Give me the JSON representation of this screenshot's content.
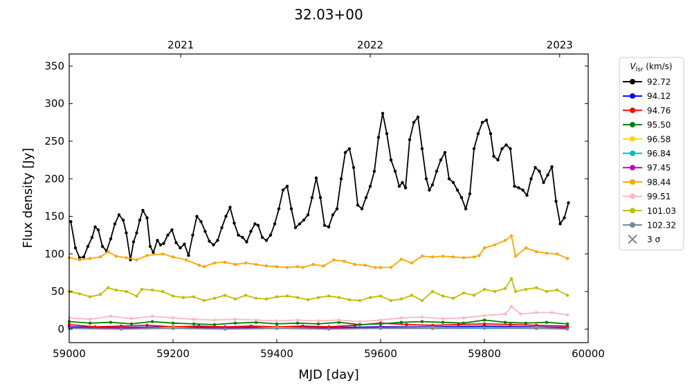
{
  "chart_data": {
    "type": "line",
    "title": "32.03+00",
    "xlabel": "MJD [day]",
    "ylabel": "Flux density [Jy]",
    "xlim": [
      59000,
      60000
    ],
    "ylim": [
      -18,
      366
    ],
    "xticks": [
      "59000",
      "59200",
      "59400",
      "59600",
      "59800",
      "60000"
    ],
    "xtick_values": [
      59000,
      59200,
      59400,
      59600,
      59800,
      60000
    ],
    "yticks": [
      "0",
      "50",
      "100",
      "150",
      "200",
      "250",
      "300",
      "350"
    ],
    "ytick_values": [
      0,
      50,
      100,
      150,
      200,
      250,
      300,
      350
    ],
    "top_axis_ticks": [
      "2021",
      "2022",
      "2023"
    ],
    "top_axis_values": [
      59215,
      59580,
      59945
    ],
    "grid": false,
    "legend_title": "V_lsr (km/s)",
    "legend_placement": "outside-right",
    "sigma_label": "3 σ",
    "sigma_color": "#808080",
    "series": [
      {
        "name": "92.72",
        "color": "#000000",
        "x": [
          59003,
          59012,
          59020,
          59028,
          59036,
          59044,
          59050,
          59056,
          59064,
          59072,
          59080,
          59088,
          59096,
          59104,
          59110,
          59118,
          59124,
          59130,
          59136,
          59142,
          59150,
          59156,
          59162,
          59170,
          59176,
          59182,
          59190,
          59198,
          59206,
          59214,
          59222,
          59230,
          59238,
          59246,
          59254,
          59262,
          59270,
          59278,
          59286,
          59294,
          59302,
          59310,
          59318,
          59326,
          59334,
          59342,
          59350,
          59358,
          59364,
          59372,
          59380,
          59388,
          59396,
          59404,
          59412,
          59420,
          59428,
          59436,
          59444,
          59452,
          59460,
          59468,
          59476,
          59484,
          59492,
          59500,
          59508,
          59516,
          59524,
          59532,
          59540,
          59548,
          59556,
          59564,
          59572,
          59580,
          59588,
          59596,
          59604,
          59612,
          59620,
          59628,
          59636,
          59642,
          59648,
          59656,
          59664,
          59672,
          59680,
          59688,
          59694,
          59700,
          59708,
          59716,
          59724,
          59732,
          59740,
          59748,
          59756,
          59764,
          59772,
          59780,
          59788,
          59796,
          59804,
          59812,
          59818,
          59826,
          59834,
          59842,
          59850,
          59858,
          59866,
          59874,
          59882,
          59890,
          59898,
          59906,
          59914,
          59922,
          59930,
          59938,
          59946,
          59954,
          59962
        ],
        "y": [
          143,
          108,
          95,
          96,
          110,
          122,
          136,
          132,
          110,
          104,
          120,
          140,
          152,
          145,
          128,
          92,
          116,
          128,
          145,
          158,
          148,
          110,
          102,
          118,
          112,
          114,
          125,
          132,
          115,
          108,
          113,
          98,
          125,
          150,
          143,
          130,
          117,
          112,
          118,
          135,
          150,
          162,
          141,
          125,
          122,
          116,
          130,
          140,
          138,
          122,
          118,
          125,
          140,
          160,
          185,
          190,
          160,
          135,
          140,
          145,
          152,
          175,
          201,
          175,
          138,
          136,
          152,
          160,
          200,
          235,
          240,
          215,
          165,
          160,
          175,
          190,
          210,
          255,
          287,
          260,
          225,
          210,
          190,
          195,
          188,
          252,
          275,
          282,
          240,
          200,
          185,
          192,
          210,
          225,
          235,
          200,
          195,
          185,
          175,
          160,
          180,
          240,
          260,
          275,
          278,
          260,
          230,
          225,
          240,
          245,
          240,
          190,
          188,
          185,
          178,
          200,
          215,
          210,
          195,
          205,
          216,
          170,
          140,
          148,
          168
        ]
      },
      {
        "name": "94.12",
        "color": "#0000ff",
        "x": [
          59000,
          59100,
          59200,
          59300,
          59400,
          59500,
          59600,
          59700,
          59800,
          59900,
          59960
        ],
        "y": [
          3,
          2,
          3,
          2,
          3,
          2,
          3,
          3,
          4,
          3,
          2
        ]
      },
      {
        "name": "94.76",
        "color": "#ff0000",
        "x": [
          59000,
          59050,
          59100,
          59150,
          59200,
          59250,
          59300,
          59350,
          59400,
          59450,
          59500,
          59550,
          59600,
          59650,
          59700,
          59750,
          59800,
          59850,
          59900,
          59960
        ],
        "y": [
          6,
          3,
          4,
          5,
          3,
          4,
          3,
          4,
          3,
          4,
          3,
          5,
          8,
          6,
          5,
          6,
          7,
          6,
          5,
          4
        ]
      },
      {
        "name": "95.50",
        "color": "#008000",
        "x": [
          59000,
          59040,
          59080,
          59120,
          59160,
          59200,
          59240,
          59280,
          59320,
          59360,
          59400,
          59440,
          59480,
          59520,
          59560,
          59600,
          59640,
          59680,
          59720,
          59760,
          59800,
          59840,
          59880,
          59920,
          59960
        ],
        "y": [
          10,
          8,
          9,
          7,
          10,
          8,
          7,
          6,
          8,
          9,
          7,
          8,
          7,
          9,
          6,
          7,
          9,
          10,
          9,
          8,
          12,
          9,
          8,
          9,
          7
        ]
      },
      {
        "name": "96.58",
        "color": "#ffd700",
        "x": [
          59000,
          59100,
          59200,
          59300,
          59400,
          59500,
          59600,
          59700,
          59800,
          59900,
          59960
        ],
        "y": [
          2,
          1,
          2,
          1,
          2,
          1,
          2,
          2,
          2,
          2,
          1
        ]
      },
      {
        "name": "96.84",
        "color": "#00bfbf",
        "x": [
          59000,
          59100,
          59200,
          59300,
          59400,
          59500,
          59600,
          59700,
          59800,
          59900,
          59960
        ],
        "y": [
          1,
          1,
          1,
          1,
          1,
          1,
          1,
          1,
          1,
          1,
          1
        ]
      },
      {
        "name": "97.45",
        "color": "#bf00bf",
        "x": [
          59000,
          59100,
          59200,
          59300,
          59400,
          59500,
          59600,
          59700,
          59800,
          59900,
          59960
        ],
        "y": [
          2,
          1,
          1,
          2,
          1,
          1,
          2,
          1,
          2,
          1,
          1
        ]
      },
      {
        "name": "98.44",
        "color": "#ffa500",
        "x": [
          59000,
          59020,
          59040,
          59060,
          59075,
          59090,
          59110,
          59130,
          59150,
          59180,
          59200,
          59225,
          59250,
          59260,
          59280,
          59300,
          59320,
          59340,
          59360,
          59380,
          59400,
          59420,
          59440,
          59450,
          59470,
          59490,
          59510,
          59530,
          59550,
          59570,
          59590,
          59600,
          59620,
          59640,
          59660,
          59680,
          59700,
          59720,
          59740,
          59760,
          59780,
          59790,
          59800,
          59820,
          59840,
          59852,
          59860,
          59880,
          59900,
          59920,
          59940,
          59960
        ],
        "y": [
          95,
          92,
          94,
          96,
          103,
          97,
          95,
          92,
          98,
          100,
          96,
          92,
          85,
          83,
          88,
          89,
          86,
          88,
          86,
          84,
          83,
          82,
          83,
          82,
          86,
          84,
          92,
          90,
          86,
          85,
          82,
          82,
          82,
          93,
          88,
          97,
          96,
          97,
          96,
          95,
          96,
          98,
          108,
          112,
          118,
          124,
          97,
          108,
          103,
          101,
          100,
          94
        ]
      },
      {
        "name": "99.51",
        "color": "#ffb6c1",
        "x": [
          59000,
          59040,
          59080,
          59120,
          59160,
          59200,
          59240,
          59280,
          59320,
          59360,
          59400,
          59440,
          59480,
          59520,
          59560,
          59600,
          59640,
          59680,
          59720,
          59760,
          59800,
          59840,
          59852,
          59870,
          59900,
          59930,
          59960
        ],
        "y": [
          15,
          13,
          17,
          14,
          17,
          15,
          13,
          12,
          13,
          12,
          11,
          12,
          11,
          12,
          10,
          12,
          15,
          16,
          14,
          15,
          18,
          20,
          30,
          20,
          22,
          22,
          19
        ]
      },
      {
        "name": "101.03",
        "color": "#bfbf00",
        "x": [
          59000,
          59020,
          59040,
          59060,
          59075,
          59090,
          59110,
          59130,
          59140,
          59160,
          59180,
          59200,
          59220,
          59240,
          59260,
          59280,
          59300,
          59320,
          59340,
          59360,
          59380,
          59400,
          59420,
          59440,
          59460,
          59480,
          59500,
          59520,
          59540,
          59560,
          59580,
          59600,
          59620,
          59640,
          59660,
          59680,
          59700,
          59720,
          59740,
          59760,
          59780,
          59800,
          59820,
          59840,
          59852,
          59860,
          59880,
          59900,
          59920,
          59940,
          59960
        ],
        "y": [
          50,
          47,
          43,
          46,
          55,
          52,
          50,
          44,
          53,
          52,
          50,
          44,
          42,
          43,
          38,
          41,
          45,
          40,
          45,
          41,
          40,
          43,
          44,
          42,
          39,
          42,
          44,
          42,
          39,
          38,
          42,
          44,
          38,
          40,
          45,
          38,
          50,
          44,
          41,
          48,
          45,
          53,
          50,
          54,
          67,
          50,
          53,
          55,
          50,
          52,
          45
        ]
      },
      {
        "name": "102.32",
        "color": "#778899",
        "x": [
          59000,
          59100,
          59200,
          59300,
          59400,
          59500,
          59600,
          59700,
          59800,
          59900,
          59960
        ],
        "y": [
          1,
          0,
          1,
          0,
          1,
          0,
          1,
          1,
          2,
          1,
          0
        ]
      }
    ]
  }
}
